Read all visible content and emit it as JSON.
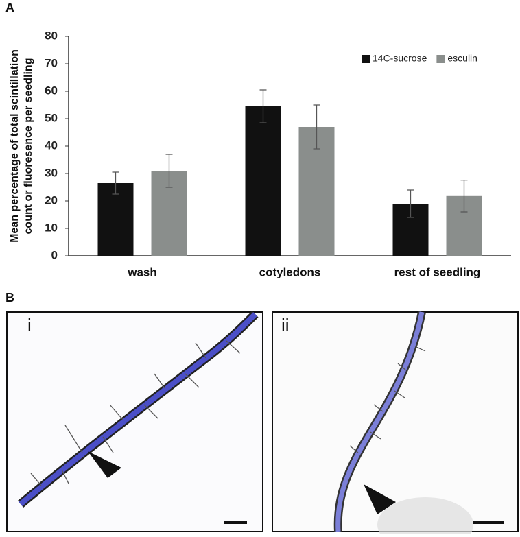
{
  "panels": {
    "a_label": "A",
    "b_label": "B",
    "images": [
      "i",
      "ii"
    ]
  },
  "chart_data": {
    "type": "bar",
    "ylabel": [
      "Mean percentage of total scintillation",
      "count or fluoresence per seedling"
    ],
    "categories": [
      "wash",
      "cotyledons",
      "rest of seedling"
    ],
    "series": [
      {
        "name": "14C-sucrose",
        "color": "#111111",
        "values": [
          26.5,
          54.5,
          19
        ],
        "errors": [
          4,
          6,
          5
        ]
      },
      {
        "name": "esculin",
        "color": "#8a8e8c",
        "values": [
          31,
          47,
          21.8
        ],
        "errors": [
          6,
          8,
          5.8
        ]
      }
    ],
    "ylim": [
      0,
      80
    ],
    "yticks": [
      0,
      10,
      20,
      30,
      40,
      50,
      60,
      70,
      80
    ],
    "grid": false,
    "legend": "upper right"
  }
}
